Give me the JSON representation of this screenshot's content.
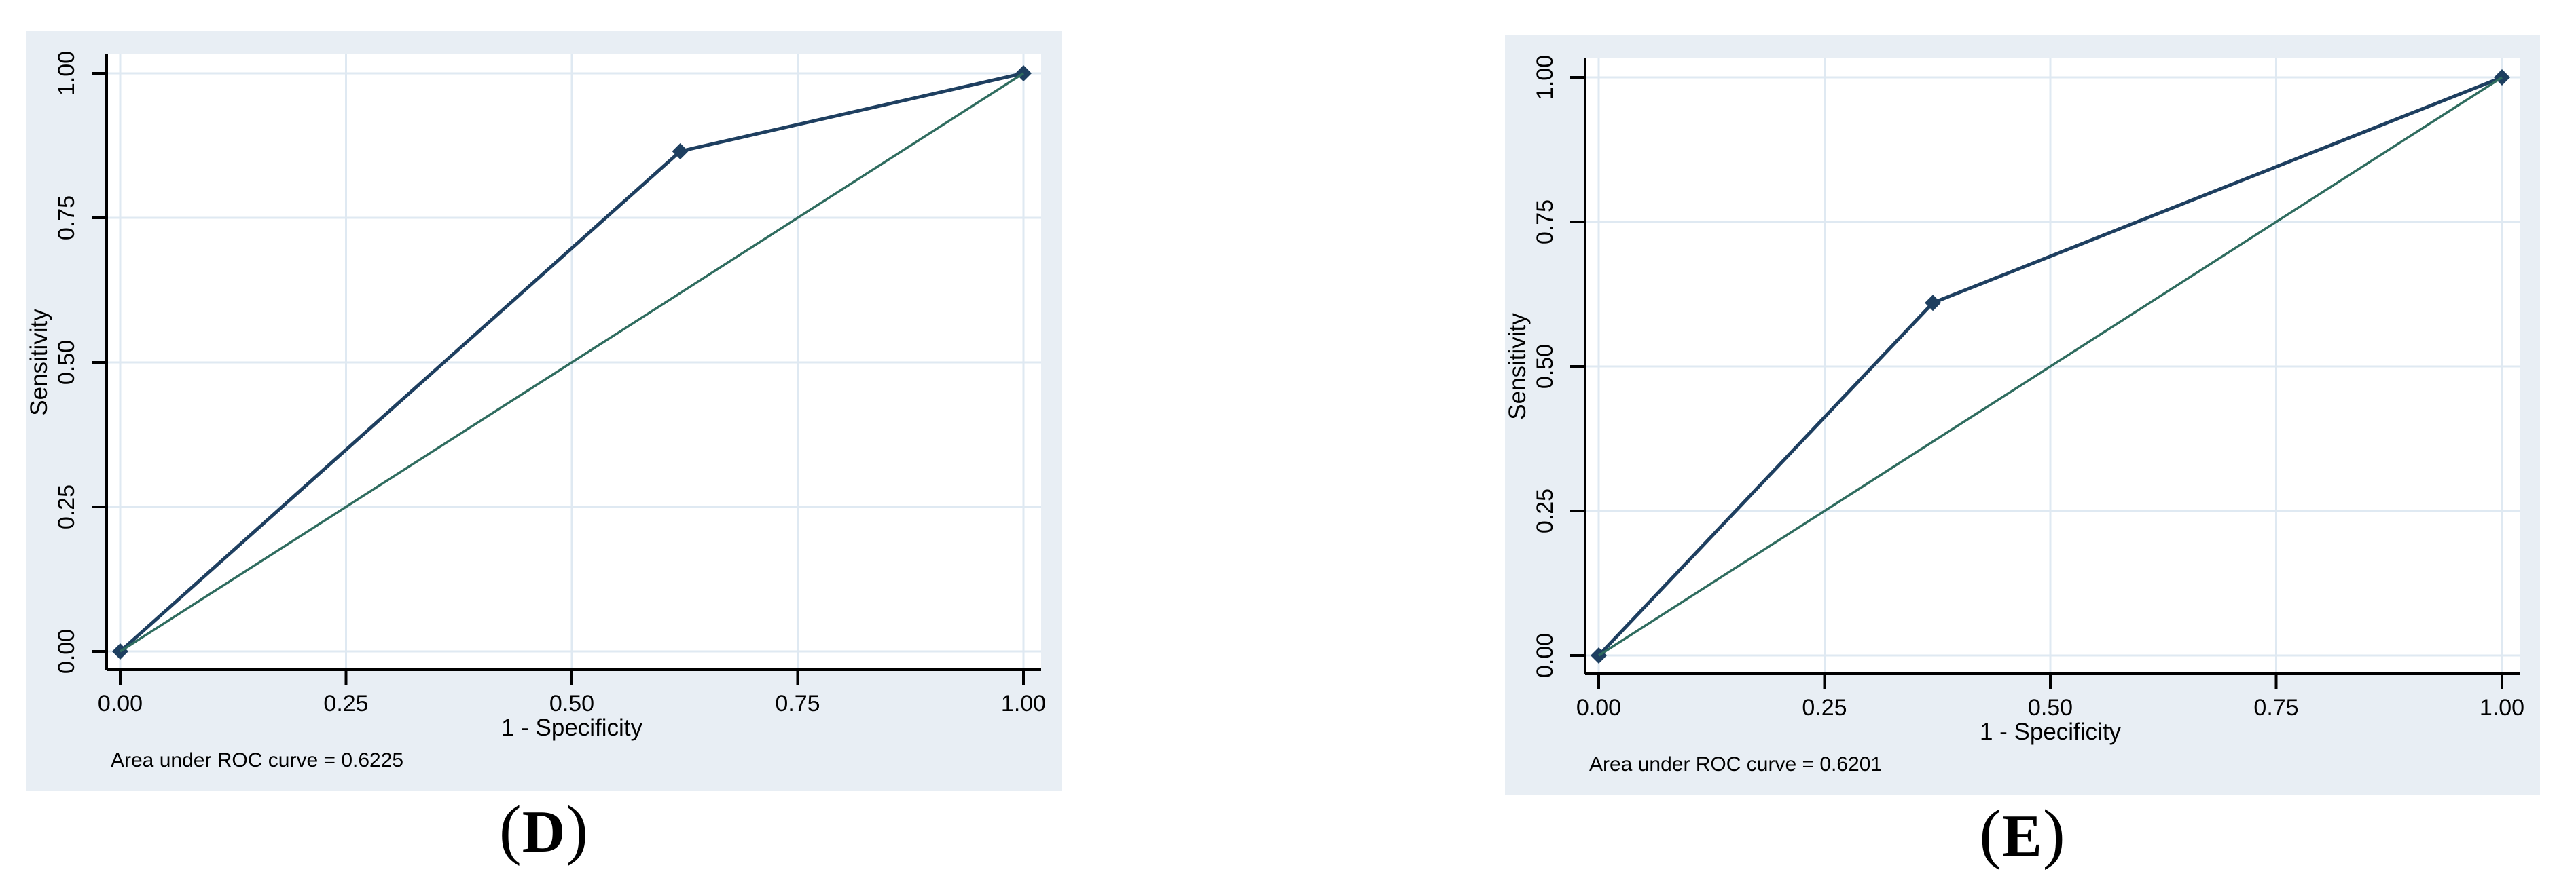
{
  "page": {
    "background": "#ffffff"
  },
  "style": {
    "panel_bg": "#e8eef4",
    "plot_bg": "#ffffff",
    "grid_color": "#dfe9f2",
    "axis_color": "#000000",
    "text_color": "#000000",
    "roc_color": "#1e3f60",
    "reference_color": "#2f6c5f"
  },
  "charts": [
    {
      "caption": {
        "open": "(",
        "letter": "D",
        "close": ")"
      }
    },
    {
      "caption": {
        "open": "(",
        "letter": "E",
        "close": ")"
      }
    }
  ],
  "chart_data": [
    {
      "type": "line",
      "title": "",
      "xlabel": "1 - Specificity",
      "ylabel": "Sensitivity",
      "xlim": [
        0,
        1
      ],
      "ylim": [
        0,
        1
      ],
      "tick_values": [
        0,
        0.25,
        0.5,
        0.75,
        1
      ],
      "xtick_labels": [
        "0.00",
        "0.25",
        "0.50",
        "0.75",
        "1.00"
      ],
      "ytick_labels": [
        "0.00",
        "0.25",
        "0.50",
        "0.75",
        "1.00"
      ],
      "grid": true,
      "legend": "none",
      "annotation": "Area under ROC curve = 0.6225",
      "auc": 0.6225,
      "series": [
        {
          "name": "ROC curve",
          "color": "#1e3f60",
          "marker": "diamond",
          "points": [
            [
              0,
              0
            ],
            [
              0.62,
              0.865
            ],
            [
              1,
              1
            ]
          ]
        },
        {
          "name": "reference line",
          "color": "#2f6c5f",
          "marker": "none",
          "points": [
            [
              0,
              0
            ],
            [
              1,
              1
            ]
          ]
        }
      ]
    },
    {
      "type": "line",
      "title": "",
      "xlabel": "1 - Specificity",
      "ylabel": "Sensitivity",
      "xlim": [
        0,
        1
      ],
      "ylim": [
        0,
        1
      ],
      "tick_values": [
        0,
        0.25,
        0.5,
        0.75,
        1
      ],
      "xtick_labels": [
        "0.00",
        "0.25",
        "0.50",
        "0.75",
        "1.00"
      ],
      "ytick_labels": [
        "0.00",
        "0.25",
        "0.50",
        "0.75",
        "1.00"
      ],
      "grid": true,
      "legend": "none",
      "annotation": "Area under ROC curve = 0.6201",
      "auc": 0.6201,
      "series": [
        {
          "name": "ROC curve",
          "color": "#1e3f60",
          "marker": "diamond",
          "points": [
            [
              0,
              0
            ],
            [
              0.37,
              0.61
            ],
            [
              1,
              1
            ]
          ]
        },
        {
          "name": "reference line",
          "color": "#2f6c5f",
          "marker": "none",
          "points": [
            [
              0,
              0
            ],
            [
              1,
              1
            ]
          ]
        }
      ]
    }
  ]
}
